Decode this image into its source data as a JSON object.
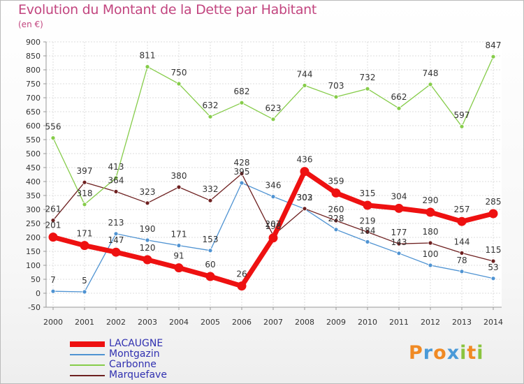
{
  "header": {
    "title": "Evolution du Montant de la Dette par Habitant",
    "subtitle": "(en €)"
  },
  "logo": {
    "text": "Proxiti",
    "letters": [
      "P",
      "r",
      "o",
      "x",
      "i",
      "t",
      "i"
    ],
    "colors": [
      "#f08a24",
      "#4a9ad8",
      "#f08a24",
      "#4a9ad8",
      "#8ac43f",
      "#f08a24",
      "#8ac43f"
    ]
  },
  "chart_data": {
    "type": "line",
    "title": "Evolution du Montant de la Dette par Habitant",
    "subtitle": "(en €)",
    "x": [
      "2000",
      "2001",
      "2002",
      "2003",
      "2004",
      "2005",
      "2006",
      "2007",
      "2008",
      "2009",
      "2010",
      "2011",
      "2012",
      "2013",
      "2014"
    ],
    "ylim": [
      -50,
      900
    ],
    "yticks": [
      -50,
      0,
      50,
      100,
      150,
      200,
      250,
      300,
      350,
      400,
      450,
      500,
      550,
      600,
      650,
      700,
      750,
      800,
      850,
      900
    ],
    "grid": true,
    "legend_position": "bottom-left",
    "series": [
      {
        "name": "LACAUGNE",
        "color": "#ee1111",
        "emphasis": true,
        "values": [
          201,
          171,
          147,
          120,
          91,
          60,
          26,
          198,
          436,
          359,
          315,
          304,
          290,
          257,
          285
        ],
        "labels": [
          "201",
          "171",
          "147",
          "120",
          "91",
          "60",
          "26",
          "198",
          "436",
          "359",
          "315",
          "304",
          "290",
          "257",
          "285"
        ]
      },
      {
        "name": "Montgazin",
        "color": "#4f93d2",
        "values": [
          7,
          5,
          213,
          190,
          171,
          153,
          395,
          346,
          302,
          228,
          184,
          143,
          100,
          78,
          53
        ],
        "labels": [
          "7",
          "5",
          "213",
          "190",
          "171",
          "153",
          "395",
          "346",
          "302",
          "228",
          "184",
          "143",
          "100",
          "78",
          "53"
        ]
      },
      {
        "name": "Carbonne",
        "color": "#86cc4a",
        "values": [
          556,
          318,
          413,
          811,
          750,
          632,
          682,
          623,
          744,
          703,
          732,
          662,
          748,
          597,
          847
        ],
        "labels": [
          "556",
          "318",
          "413",
          "811",
          "750",
          "632",
          "682",
          "623",
          "744",
          "703",
          "732",
          "662",
          "748",
          "597",
          "847"
        ]
      },
      {
        "name": "Marquefave",
        "color": "#6e2020",
        "values": [
          261,
          397,
          364,
          323,
          380,
          332,
          428,
          207,
          303,
          260,
          219,
          177,
          180,
          144,
          115
        ],
        "labels": [
          "261",
          "397",
          "364",
          "323",
          "380",
          "332",
          "428",
          "207",
          "303",
          "260",
          "219",
          "177",
          "180",
          "144",
          "115"
        ]
      }
    ]
  }
}
